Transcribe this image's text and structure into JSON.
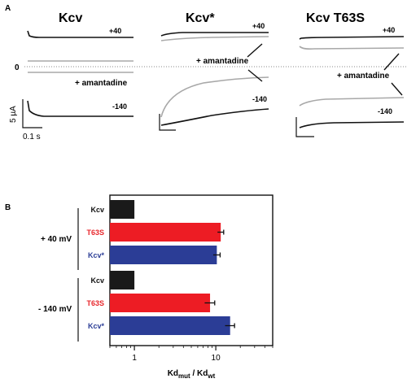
{
  "panel_a": {
    "label": "A",
    "traces": [
      {
        "title": "Kcv",
        "labels": {
          "plus40": "+40",
          "minus140": "-140",
          "zero": "0",
          "drug": "+ amantadine"
        }
      },
      {
        "title": "Kcv*",
        "labels": {
          "plus40": "+40",
          "minus140": "-140",
          "drug": "+ amantadine"
        }
      },
      {
        "title": "Kcv T63S",
        "labels": {
          "plus40": "+40",
          "minus140": "-140",
          "drug": "+ amantadine"
        }
      }
    ],
    "scale_bar": {
      "current": "5 µA",
      "time": "0.1 s"
    }
  },
  "panel_b": {
    "label": "B",
    "xlabel_main": "Kd",
    "xlabel_sub1": "mut",
    "xlabel_sep": " / Kd",
    "xlabel_sub2": "wt",
    "group_labels": [
      "+ 40 mV",
      "- 140 mV"
    ]
  },
  "chart_data": {
    "type": "bar",
    "orientation": "horizontal",
    "xscale": "log",
    "xlim": [
      0.5,
      50
    ],
    "xticks": [
      1,
      10
    ],
    "xtick_labels": [
      "1",
      "10"
    ],
    "xlabel": "Kdmut / Kdwt",
    "groups": [
      {
        "name": "+ 40 mV",
        "bars": [
          {
            "label": "Kcv",
            "value": 1.0,
            "error": 0,
            "color": "#1a1a1a",
            "label_color": "#111111"
          },
          {
            "label": "T63S",
            "value": 11.5,
            "error": 1.0,
            "color": "#ed1c24",
            "label_color": "#e8262b"
          },
          {
            "label": "Kcv*",
            "value": 10.3,
            "error": 1.0,
            "color": "#2b3d96",
            "label_color": "#2d3f97"
          }
        ]
      },
      {
        "name": "- 140 mV",
        "bars": [
          {
            "label": "Kcv",
            "value": 1.0,
            "error": 0,
            "color": "#1a1a1a",
            "label_color": "#111111"
          },
          {
            "label": "T63S",
            "value": 8.5,
            "error": 1.2,
            "color": "#ed1c24",
            "label_color": "#e8262b"
          },
          {
            "label": "Kcv*",
            "value": 15.0,
            "error": 2.0,
            "color": "#2b3d96",
            "label_color": "#2d3f97"
          }
        ]
      }
    ]
  }
}
